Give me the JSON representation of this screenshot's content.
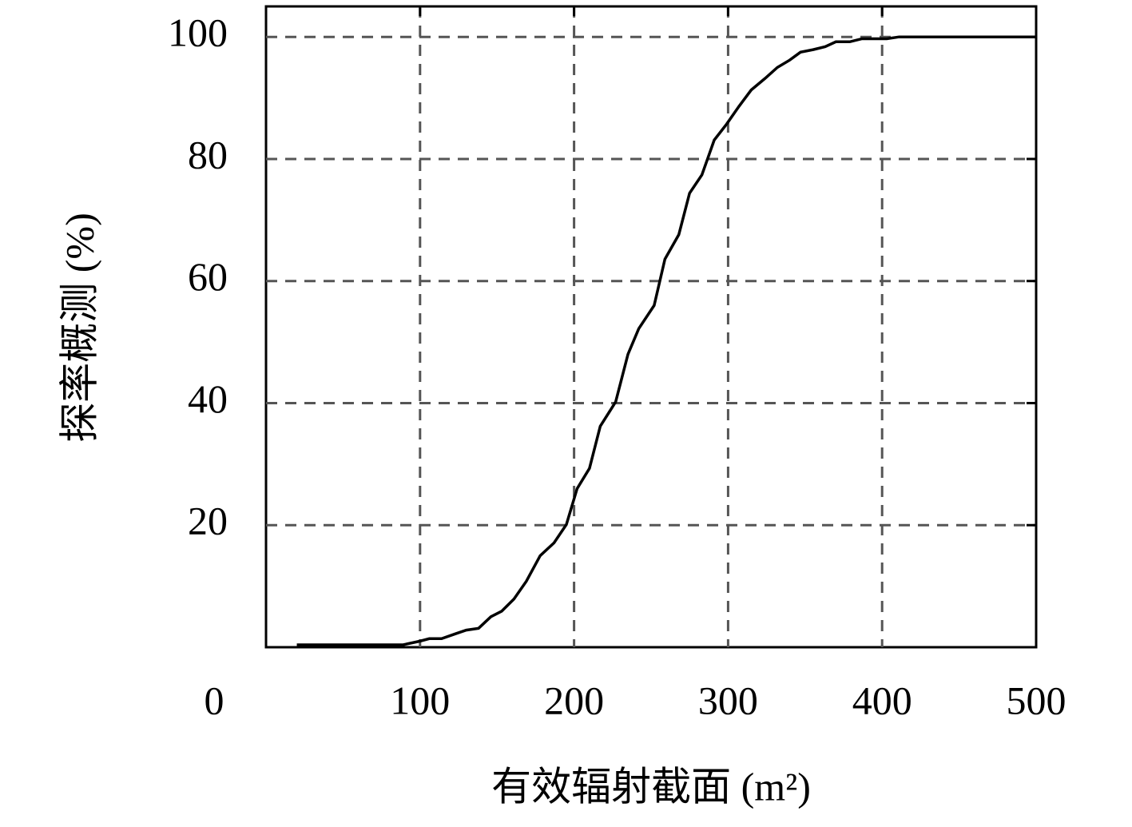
{
  "chart_data": {
    "type": "line",
    "xlabel": "有效辐射截面 (m²)",
    "ylabel": "探率概测 (%)",
    "x": [
      20,
      89,
      100,
      106,
      114,
      123,
      130,
      138,
      146,
      153,
      161,
      169,
      178,
      187,
      195,
      202,
      210,
      217,
      227,
      235,
      242,
      252,
      259,
      268,
      275,
      283,
      291,
      299,
      307,
      315,
      324,
      332,
      340,
      347,
      355,
      363,
      370,
      379,
      387,
      403,
      411,
      500
    ],
    "series": [
      {
        "color": "#000000",
        "values": [
          0.4,
          0.4,
          1.0,
          1.4,
          1.4,
          2.2,
          2.8,
          3.1,
          5.0,
          5.9,
          7.9,
          10.8,
          15.0,
          17.1,
          20.1,
          26.0,
          29.3,
          36.2,
          40.2,
          48.0,
          52.2,
          56.0,
          63.6,
          67.6,
          74.4,
          77.4,
          83.1,
          85.7,
          88.6,
          91.3,
          93.2,
          95.0,
          96.2,
          97.5,
          97.9,
          98.4,
          99.2,
          99.2,
          99.7,
          99.7,
          100,
          100
        ]
      }
    ],
    "xlim": [
      0,
      500
    ],
    "xticks": [
      0,
      100,
      200,
      300,
      400,
      500
    ],
    "ylim": [
      0,
      105
    ],
    "yticks": [
      20,
      40,
      60,
      80,
      100
    ],
    "grid": true
  }
}
